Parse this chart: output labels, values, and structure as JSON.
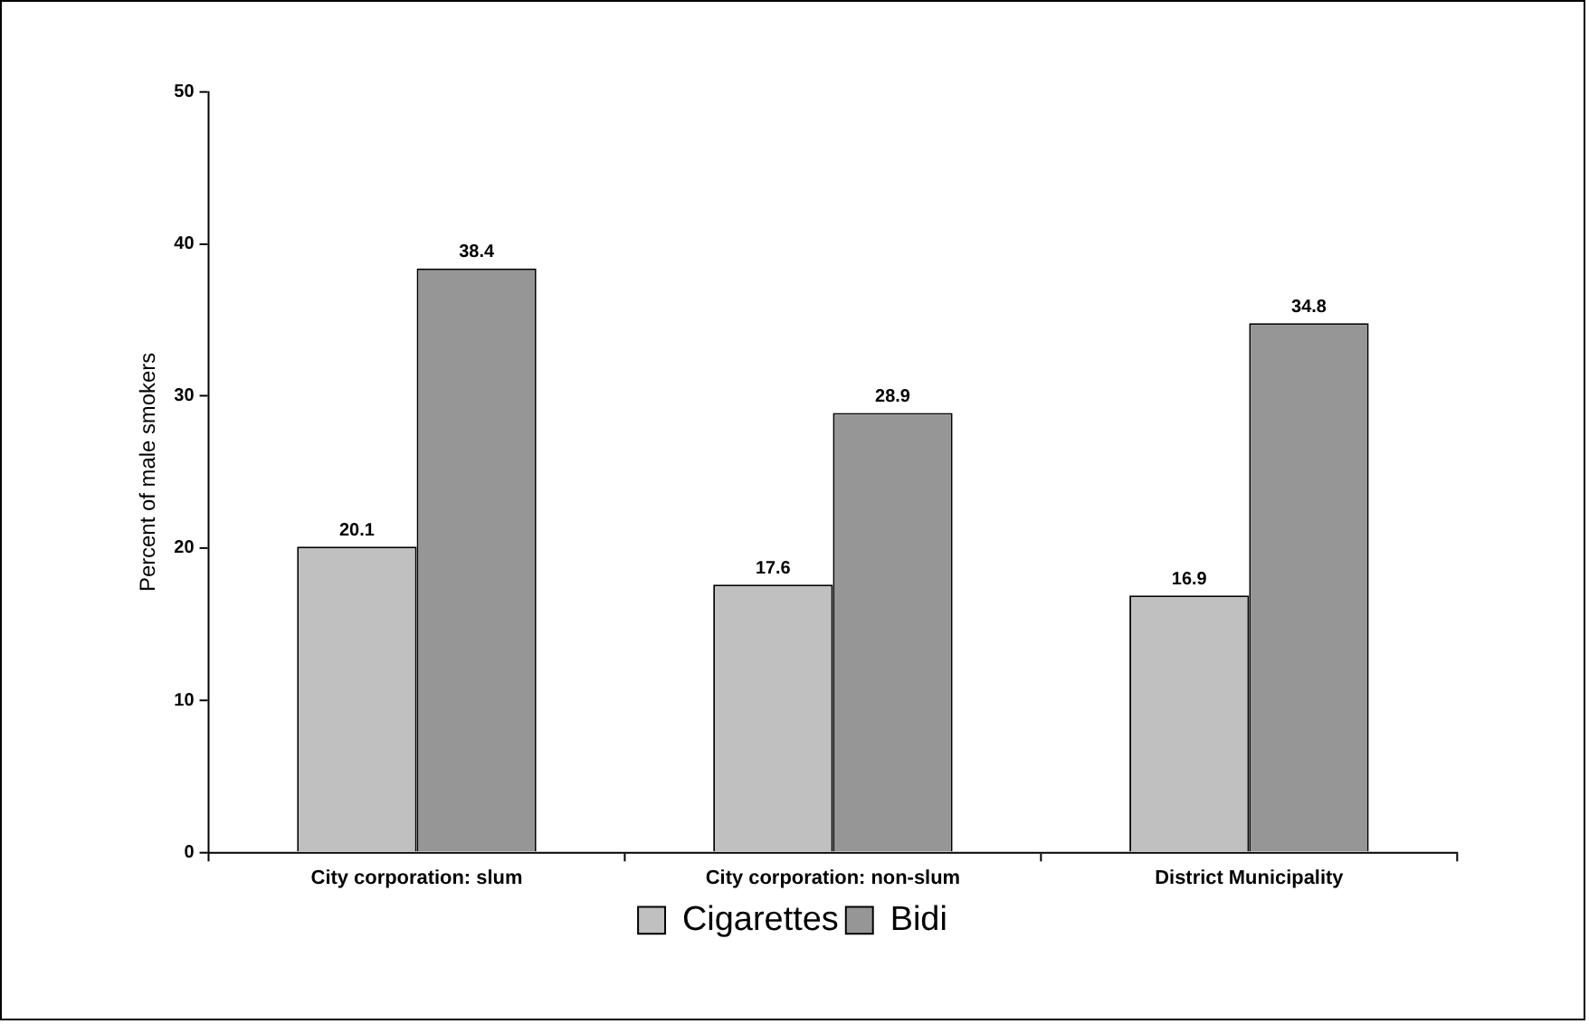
{
  "chart_data": {
    "type": "bar",
    "ylabel": "Percent of male smokers",
    "categories": [
      "City corporation: slum",
      "City corporation: non-slum",
      "District Municipality"
    ],
    "series": [
      {
        "name": "Cigarettes",
        "color": "#c0c0c0",
        "values": [
          20.1,
          17.6,
          16.9
        ]
      },
      {
        "name": "Bidi",
        "color": "#969696",
        "values": [
          38.4,
          28.9,
          34.8
        ]
      }
    ],
    "ylim": [
      0,
      50
    ],
    "yticks": [
      0,
      10,
      20,
      30,
      40,
      50
    ],
    "grid": false,
    "legend": "bottom",
    "data_labels": true
  }
}
